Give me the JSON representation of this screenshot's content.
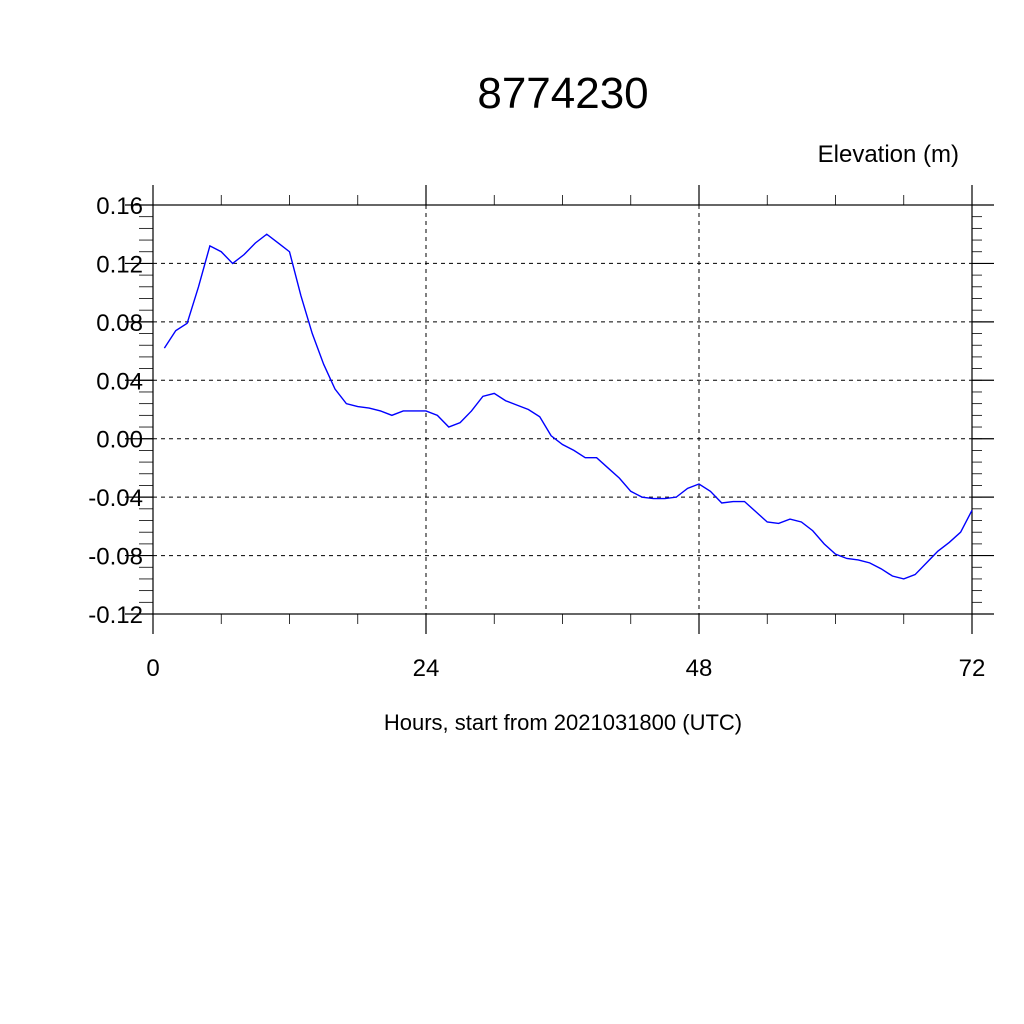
{
  "chart_data": {
    "type": "line",
    "title": "8774230",
    "ylabel": "Elevation (m)",
    "xlabel": "Hours, start from 2021031800 (UTC)",
    "xlim": [
      0,
      72
    ],
    "ylim": [
      -0.12,
      0.16
    ],
    "xticks": [
      0,
      24,
      48,
      72
    ],
    "yticks": [
      -0.12,
      -0.08,
      -0.04,
      0.0,
      0.04,
      0.08,
      0.12,
      0.16
    ],
    "ytick_labels": [
      "-0.12",
      "-0.08",
      "-0.04",
      "0.00",
      "0.04",
      "0.08",
      "0.12",
      "0.16"
    ],
    "grid": true,
    "series": [
      {
        "color": "#0000ff",
        "x": [
          1,
          2,
          3,
          4,
          5,
          6,
          7,
          8,
          9,
          10,
          11,
          12,
          13,
          14,
          15,
          16,
          17,
          18,
          19,
          20,
          21,
          22,
          23,
          24,
          25,
          26,
          27,
          28,
          29,
          30,
          31,
          32,
          33,
          34,
          35,
          36,
          37,
          38,
          39,
          40,
          41,
          42,
          43,
          44,
          45,
          46,
          47,
          48,
          49,
          50,
          51,
          52,
          53,
          54,
          55,
          56,
          57,
          58,
          59,
          60,
          61,
          62,
          63,
          64,
          65,
          66,
          67,
          68,
          69,
          70,
          71,
          72
        ],
        "y": [
          0.062,
          0.074,
          0.079,
          0.104,
          0.132,
          0.128,
          0.12,
          0.126,
          0.134,
          0.14,
          0.134,
          0.128,
          0.098,
          0.072,
          0.051,
          0.034,
          0.024,
          0.022,
          0.021,
          0.019,
          0.016,
          0.019,
          0.019,
          0.019,
          0.016,
          0.008,
          0.011,
          0.019,
          0.029,
          0.031,
          0.026,
          0.023,
          0.02,
          0.015,
          0.002,
          -0.004,
          -0.008,
          -0.013,
          -0.013,
          -0.02,
          -0.027,
          -0.036,
          -0.04,
          -0.041,
          -0.041,
          -0.04,
          -0.034,
          -0.031,
          -0.036,
          -0.044,
          -0.043,
          -0.043,
          -0.05,
          -0.057,
          -0.058,
          -0.055,
          -0.057,
          -0.063,
          -0.072,
          -0.079,
          -0.082,
          -0.083,
          -0.085,
          -0.089,
          -0.094,
          -0.096,
          -0.093,
          -0.085,
          -0.077,
          -0.071,
          -0.064,
          -0.049
        ]
      }
    ]
  }
}
